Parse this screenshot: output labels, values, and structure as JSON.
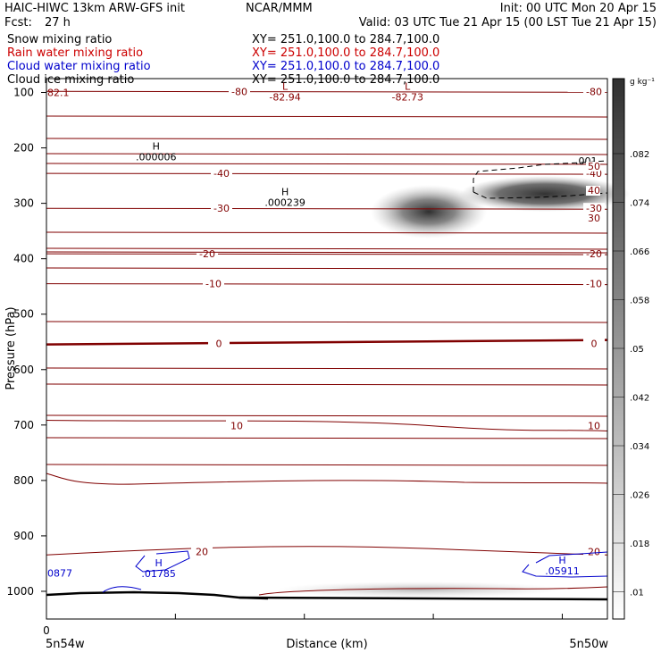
{
  "header": {
    "model": "HAIC-HIWC 13km ARW-GFS init",
    "center": "NCAR/MMM",
    "init": "Init: 00 UTC Mon 20 Apr 15",
    "fcst_label": "Fcst:",
    "fcst_value": "27 h",
    "valid": "Valid: 03 UTC Tue 21 Apr 15 (00 LST Tue 21 Apr 15)"
  },
  "fields": [
    {
      "name": "Snow mixing ratio",
      "xy": "XY= 251.0,100.0 to 284.7,100.0",
      "color": "#000000"
    },
    {
      "name": "Rain water mixing ratio",
      "xy": "XY= 251.0,100.0 to 284.7,100.0",
      "color": "#cc0000"
    },
    {
      "name": "Cloud water mixing ratio",
      "xy": "XY= 251.0,100.0 to 284.7,100.0",
      "color": "#0000cc"
    },
    {
      "name": "Cloud ice mixing ratio",
      "xy": "XY= 251.0,100.0 to 284.7,100.0",
      "color": "#000000"
    }
  ],
  "chart_data": {
    "type": "heatmap",
    "ylabel": "Pressure (hPa)",
    "xlabel": "Distance (km)",
    "yticks": [
      100,
      200,
      300,
      400,
      500,
      600,
      700,
      800,
      900,
      1000
    ],
    "ylim": [
      1050,
      75
    ],
    "xlim": [
      0,
      435
    ],
    "xtick_zero": "0",
    "x_start_label": "5n54w",
    "x_end_label": "5n50w",
    "colorbar": {
      "unit": "g kg⁻¹",
      "ticks": [
        ".082",
        ".074",
        ".066",
        ".058",
        ".05",
        ".042",
        ".034",
        ".026",
        ".018",
        ".01"
      ]
    },
    "isotherms": [
      {
        "value": -80,
        "label": "-80",
        "p": 98
      },
      {
        "value": -40,
        "label": "-40",
        "p": 246
      },
      {
        "value": -30,
        "label": "-30",
        "p": 309
      },
      {
        "value": -20,
        "label": "-20",
        "p": 391
      },
      {
        "value": -10,
        "label": "-10",
        "p": 445
      },
      {
        "value": 0,
        "label": "0",
        "p": 553
      },
      {
        "value": 10,
        "label": "10",
        "p": 701
      },
      {
        "value": 20,
        "label": "20",
        "p": 928
      }
    ],
    "extrema": [
      {
        "type": "L",
        "value": "-82.94",
        "x": 185,
        "p": 100,
        "color": "#880000"
      },
      {
        "type": "L",
        "value": "-82.73",
        "x": 280,
        "p": 100,
        "color": "#880000"
      },
      {
        "type": "H",
        "value": ".000006",
        "x": 85,
        "p": 208,
        "color": "#000000"
      },
      {
        "type": "H",
        "value": ".000239",
        "x": 185,
        "p": 290,
        "color": "#000000"
      },
      {
        "type": "H",
        "value": ".01785",
        "x": 87,
        "p": 960,
        "color": "#0000cc"
      },
      {
        "type": "H",
        "value": ".05911",
        "x": 400,
        "p": 955,
        "color": "#0000cc"
      }
    ],
    "edge_labels": [
      {
        "text": "82.1",
        "p": 100,
        "color": "#880000"
      },
      {
        "text": "0877",
        "p": 967,
        "color": "#0000cc"
      }
    ],
    "snow_contour_label": ".001",
    "ice_contour_labels": [
      "50",
      "40",
      "30"
    ]
  }
}
